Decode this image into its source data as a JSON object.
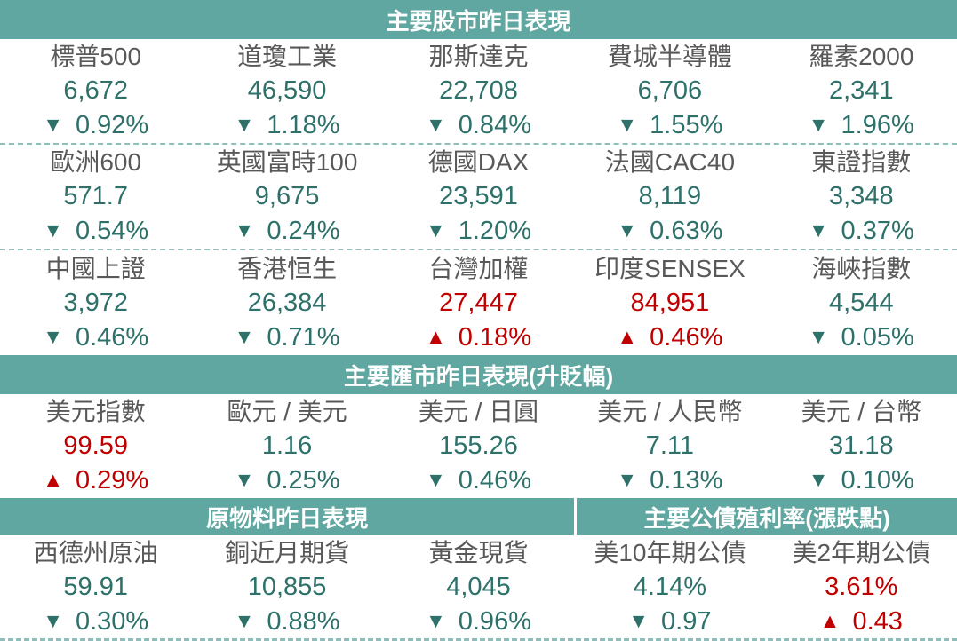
{
  "colors": {
    "band_background": "#5FA7A0",
    "down_color": "#2E716B",
    "up_color": "#C00000",
    "label_color": "#595959",
    "dashed_separator": "#8FBDB9",
    "band_divider": "#FFFFFF"
  },
  "sections": [
    {
      "header": "主要股市昨日表現",
      "rows": [
        [
          {
            "name": "標普500",
            "value": "6,672",
            "dir": "down",
            "arrow": "▼",
            "change": "0.92%"
          },
          {
            "name": "道瓊工業",
            "value": "46,590",
            "dir": "down",
            "arrow": "▼",
            "change": "1.18%"
          },
          {
            "name": "那斯達克",
            "value": "22,708",
            "dir": "down",
            "arrow": "▼",
            "change": "0.84%"
          },
          {
            "name": "費城半導體",
            "value": "6,706",
            "dir": "down",
            "arrow": "▼",
            "change": "1.55%"
          },
          {
            "name": "羅素2000",
            "value": "2,341",
            "dir": "down",
            "arrow": "▼",
            "change": "1.96%"
          }
        ],
        [
          {
            "name": "歐洲600",
            "value": "571.7",
            "dir": "down",
            "arrow": "▼",
            "change": "0.54%"
          },
          {
            "name": "英國富時100",
            "value": "9,675",
            "dir": "down",
            "arrow": "▼",
            "change": "0.24%"
          },
          {
            "name": "德國DAX",
            "value": "23,591",
            "dir": "down",
            "arrow": "▼",
            "change": "1.20%"
          },
          {
            "name": "法國CAC40",
            "value": "8,119",
            "dir": "down",
            "arrow": "▼",
            "change": "0.63%"
          },
          {
            "name": "東證指數",
            "value": "3,348",
            "dir": "down",
            "arrow": "▼",
            "change": "0.37%"
          }
        ],
        [
          {
            "name": "中國上證",
            "value": "3,972",
            "dir": "down",
            "arrow": "▼",
            "change": "0.46%"
          },
          {
            "name": "香港恒生",
            "value": "26,384",
            "dir": "down",
            "arrow": "▼",
            "change": "0.71%"
          },
          {
            "name": "台灣加權",
            "value": "27,447",
            "dir": "up",
            "arrow": "▲",
            "change": "0.18%"
          },
          {
            "name": "印度SENSEX",
            "value": "84,951",
            "dir": "up",
            "arrow": "▲",
            "change": "0.46%"
          },
          {
            "name": "海峽指數",
            "value": "4,544",
            "dir": "down",
            "arrow": "▼",
            "change": "0.05%"
          }
        ]
      ]
    },
    {
      "header": "主要匯市昨日表現(升貶幅)",
      "rows": [
        [
          {
            "name": "美元指數",
            "value": "99.59",
            "dir": "up",
            "arrow": "▲",
            "change": "0.29%"
          },
          {
            "name": "歐元 / 美元",
            "value": "1.16",
            "dir": "down",
            "arrow": "▼",
            "change": "0.25%"
          },
          {
            "name": "美元 / 日圓",
            "value": "155.26",
            "dir": "down",
            "arrow": "▼",
            "change": "0.46%"
          },
          {
            "name": "美元 / 人民幣",
            "value": "7.11",
            "dir": "down",
            "arrow": "▼",
            "change": "0.13%"
          },
          {
            "name": "美元 / 台幣",
            "value": "31.18",
            "dir": "down",
            "arrow": "▼",
            "change": "0.10%"
          }
        ]
      ]
    },
    {
      "headers": [
        "原物料昨日表現",
        "主要公債殖利率(漲跌點)"
      ],
      "rows": [
        [
          {
            "name": "西德州原油",
            "value": "59.91",
            "dir": "down",
            "arrow": "▼",
            "change": "0.30%"
          },
          {
            "name": "銅近月期貨",
            "value": "10,855",
            "dir": "down",
            "arrow": "▼",
            "change": "0.88%"
          },
          {
            "name": "黃金現貨",
            "value": "4,045",
            "dir": "down",
            "arrow": "▼",
            "change": "0.96%"
          },
          {
            "name": "美10年期公債",
            "value": "4.14%",
            "dir": "down",
            "arrow": "▼",
            "change": "0.97"
          },
          {
            "name": "美2年期公債",
            "value": "3.61%",
            "dir": "up",
            "arrow": "▲",
            "change": "0.43"
          }
        ]
      ]
    }
  ]
}
